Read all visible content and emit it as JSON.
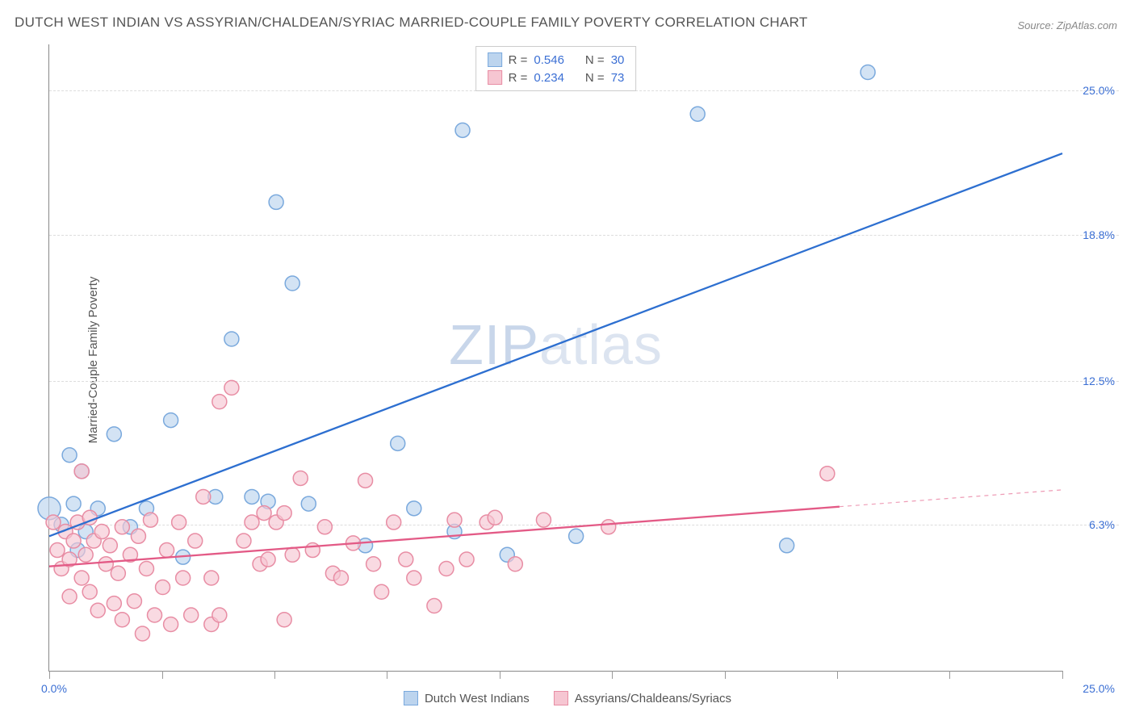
{
  "title": "DUTCH WEST INDIAN VS ASSYRIAN/CHALDEAN/SYRIAC MARRIED-COUPLE FAMILY POVERTY CORRELATION CHART",
  "source": "Source: ZipAtlas.com",
  "y_axis_label": "Married-Couple Family Poverty",
  "watermark_a": "ZIP",
  "watermark_b": "atlas",
  "chart": {
    "type": "scatter",
    "background_color": "#ffffff",
    "grid_color": "#dddddd",
    "axis_color": "#888888",
    "xlim": [
      0,
      25
    ],
    "ylim": [
      0,
      27
    ],
    "x_min_label": "0.0%",
    "x_max_label": "25.0%",
    "y_ticks": [
      {
        "value": 6.3,
        "label": "6.3%"
      },
      {
        "value": 12.5,
        "label": "12.5%"
      },
      {
        "value": 18.8,
        "label": "18.8%"
      },
      {
        "value": 25.0,
        "label": "25.0%"
      }
    ],
    "x_ticks_minor": [
      0,
      2.78,
      5.56,
      8.33,
      11.11,
      13.89,
      16.67,
      19.44,
      22.22,
      25
    ],
    "series": [
      {
        "name": "Dutch West Indians",
        "fill_color": "#bcd4ee",
        "stroke_color": "#7aa9dd",
        "line_color": "#2d6fd0",
        "marker_radius": 9,
        "marker_opacity": 0.65,
        "line_width": 2.3,
        "r_value": "0.546",
        "n_value": "30",
        "trend": {
          "x1": 0,
          "y1": 5.8,
          "x2": 25,
          "y2": 22.3,
          "solid_until_x": 25
        },
        "points": [
          {
            "x": 0.0,
            "y": 7.0,
            "r": 14
          },
          {
            "x": 0.3,
            "y": 6.3
          },
          {
            "x": 0.5,
            "y": 9.3
          },
          {
            "x": 0.6,
            "y": 7.2
          },
          {
            "x": 0.7,
            "y": 5.2
          },
          {
            "x": 0.8,
            "y": 8.6
          },
          {
            "x": 1.6,
            "y": 10.2
          },
          {
            "x": 2.0,
            "y": 6.2
          },
          {
            "x": 2.4,
            "y": 7.0
          },
          {
            "x": 3.0,
            "y": 10.8
          },
          {
            "x": 3.3,
            "y": 4.9
          },
          {
            "x": 4.1,
            "y": 7.5
          },
          {
            "x": 4.5,
            "y": 14.3
          },
          {
            "x": 5.0,
            "y": 7.5
          },
          {
            "x": 5.4,
            "y": 7.3
          },
          {
            "x": 5.6,
            "y": 20.2
          },
          {
            "x": 6.0,
            "y": 16.7
          },
          {
            "x": 6.4,
            "y": 7.2
          },
          {
            "x": 7.8,
            "y": 5.4
          },
          {
            "x": 8.6,
            "y": 9.8
          },
          {
            "x": 9.0,
            "y": 7.0
          },
          {
            "x": 10.0,
            "y": 6.0
          },
          {
            "x": 10.2,
            "y": 23.3
          },
          {
            "x": 11.3,
            "y": 5.0
          },
          {
            "x": 13.0,
            "y": 5.8
          },
          {
            "x": 16.0,
            "y": 24.0
          },
          {
            "x": 18.2,
            "y": 5.4
          },
          {
            "x": 20.2,
            "y": 25.8
          },
          {
            "x": 0.9,
            "y": 6.0
          },
          {
            "x": 1.2,
            "y": 7.0
          }
        ]
      },
      {
        "name": "Assyrians/Chaldeans/Syriacs",
        "fill_color": "#f6c6d2",
        "stroke_color": "#e88da4",
        "line_color": "#e35a86",
        "marker_radius": 9,
        "marker_opacity": 0.65,
        "line_width": 2.3,
        "r_value": "0.234",
        "n_value": "73",
        "trend": {
          "x1": 0,
          "y1": 4.5,
          "x2": 25,
          "y2": 7.8,
          "solid_until_x": 19.5
        },
        "points": [
          {
            "x": 0.1,
            "y": 6.4
          },
          {
            "x": 0.2,
            "y": 5.2
          },
          {
            "x": 0.3,
            "y": 4.4
          },
          {
            "x": 0.4,
            "y": 6.0
          },
          {
            "x": 0.5,
            "y": 4.8
          },
          {
            "x": 0.5,
            "y": 3.2
          },
          {
            "x": 0.6,
            "y": 5.6
          },
          {
            "x": 0.7,
            "y": 6.4
          },
          {
            "x": 0.8,
            "y": 4.0
          },
          {
            "x": 0.8,
            "y": 8.6
          },
          {
            "x": 0.9,
            "y": 5.0
          },
          {
            "x": 1.0,
            "y": 3.4
          },
          {
            "x": 1.0,
            "y": 6.6
          },
          {
            "x": 1.1,
            "y": 5.6
          },
          {
            "x": 1.2,
            "y": 2.6
          },
          {
            "x": 1.3,
            "y": 6.0
          },
          {
            "x": 1.4,
            "y": 4.6
          },
          {
            "x": 1.5,
            "y": 5.4
          },
          {
            "x": 1.6,
            "y": 2.9
          },
          {
            "x": 1.7,
            "y": 4.2
          },
          {
            "x": 1.8,
            "y": 6.2
          },
          {
            "x": 1.8,
            "y": 2.2
          },
          {
            "x": 2.0,
            "y": 5.0
          },
          {
            "x": 2.1,
            "y": 3.0
          },
          {
            "x": 2.2,
            "y": 5.8
          },
          {
            "x": 2.3,
            "y": 1.6
          },
          {
            "x": 2.4,
            "y": 4.4
          },
          {
            "x": 2.5,
            "y": 6.5
          },
          {
            "x": 2.6,
            "y": 2.4
          },
          {
            "x": 2.8,
            "y": 3.6
          },
          {
            "x": 2.9,
            "y": 5.2
          },
          {
            "x": 3.0,
            "y": 2.0
          },
          {
            "x": 3.2,
            "y": 6.4
          },
          {
            "x": 3.3,
            "y": 4.0
          },
          {
            "x": 3.5,
            "y": 2.4
          },
          {
            "x": 3.6,
            "y": 5.6
          },
          {
            "x": 3.8,
            "y": 7.5
          },
          {
            "x": 4.0,
            "y": 2.0
          },
          {
            "x": 4.0,
            "y": 4.0
          },
          {
            "x": 4.2,
            "y": 2.4
          },
          {
            "x": 4.2,
            "y": 11.6
          },
          {
            "x": 4.5,
            "y": 12.2
          },
          {
            "x": 4.8,
            "y": 5.6
          },
          {
            "x": 5.0,
            "y": 6.4
          },
          {
            "x": 5.2,
            "y": 4.6
          },
          {
            "x": 5.3,
            "y": 6.8
          },
          {
            "x": 5.4,
            "y": 4.8
          },
          {
            "x": 5.6,
            "y": 6.4
          },
          {
            "x": 5.8,
            "y": 2.2
          },
          {
            "x": 5.8,
            "y": 6.8
          },
          {
            "x": 6.0,
            "y": 5.0
          },
          {
            "x": 6.2,
            "y": 8.3
          },
          {
            "x": 6.5,
            "y": 5.2
          },
          {
            "x": 6.8,
            "y": 6.2
          },
          {
            "x": 7.0,
            "y": 4.2
          },
          {
            "x": 7.2,
            "y": 4.0
          },
          {
            "x": 7.5,
            "y": 5.5
          },
          {
            "x": 7.8,
            "y": 8.2
          },
          {
            "x": 8.0,
            "y": 4.6
          },
          {
            "x": 8.2,
            "y": 3.4
          },
          {
            "x": 8.5,
            "y": 6.4
          },
          {
            "x": 8.8,
            "y": 4.8
          },
          {
            "x": 9.0,
            "y": 4.0
          },
          {
            "x": 9.5,
            "y": 2.8
          },
          {
            "x": 9.8,
            "y": 4.4
          },
          {
            "x": 10.0,
            "y": 6.5
          },
          {
            "x": 10.3,
            "y": 4.8
          },
          {
            "x": 10.8,
            "y": 6.4
          },
          {
            "x": 11.0,
            "y": 6.6
          },
          {
            "x": 11.5,
            "y": 4.6
          },
          {
            "x": 12.2,
            "y": 6.5
          },
          {
            "x": 13.8,
            "y": 6.2
          },
          {
            "x": 19.2,
            "y": 8.5
          }
        ]
      }
    ]
  },
  "legend_top": {
    "r_label": "R =",
    "n_label": "N ="
  },
  "legend_bottom": [
    {
      "label": "Dutch West Indians",
      "series_idx": 0
    },
    {
      "label": "Assyrians/Chaldeans/Syriacs",
      "series_idx": 1
    }
  ]
}
